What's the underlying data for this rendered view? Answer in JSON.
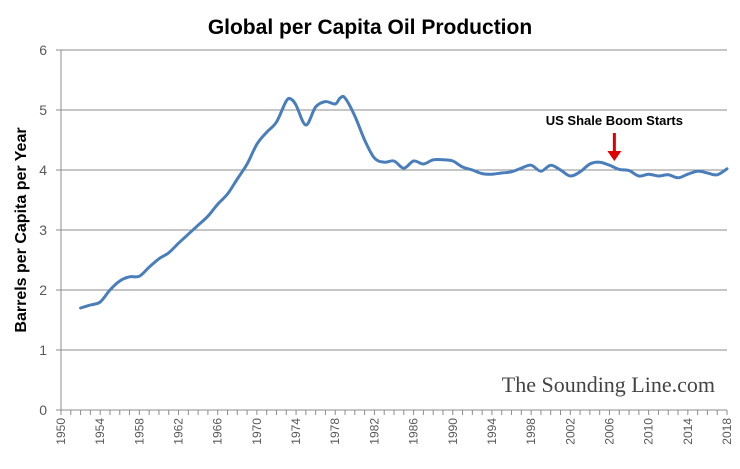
{
  "chart_data": {
    "type": "line",
    "title": "Global per Capita Oil Production",
    "xlabel": "",
    "ylabel": "Barrels per Capita per Year",
    "xlim": [
      1950,
      2018
    ],
    "ylim": [
      0,
      6
    ],
    "y_ticks": [
      "0",
      "1",
      "2",
      "3",
      "4",
      "5",
      "6"
    ],
    "x_ticks": [
      "1950",
      "1954",
      "1958",
      "1962",
      "1966",
      "1970",
      "1974",
      "1978",
      "1982",
      "1986",
      "1990",
      "1994",
      "1998",
      "2002",
      "2006",
      "2010",
      "2014",
      "2018"
    ],
    "grid": "horizontal",
    "line_color": "#4a7ebb",
    "series": [
      {
        "x": [
          1952,
          1953,
          1954,
          1955,
          1956,
          1957,
          1958,
          1959,
          1960,
          1961,
          1962,
          1963,
          1964,
          1965,
          1966,
          1967,
          1968,
          1969,
          1970,
          1971,
          1972,
          1973,
          1973.5,
          1974,
          1975,
          1976,
          1977,
          1978,
          1978.5,
          1979,
          1980,
          1981,
          1982,
          1983,
          1984,
          1985,
          1986,
          1987,
          1988,
          1989,
          1990,
          1991,
          1992,
          1993,
          1994,
          1995,
          1996,
          1997,
          1998,
          1999,
          2000,
          2001,
          2002,
          2003,
          2004,
          2005,
          2006,
          2007,
          2008,
          2009,
          2010,
          2011,
          2012,
          2013,
          2014,
          2015,
          2016,
          2017,
          2018
        ],
        "y": [
          1.7,
          1.75,
          1.8,
          2.0,
          2.15,
          2.22,
          2.23,
          2.38,
          2.52,
          2.62,
          2.78,
          2.93,
          3.08,
          3.23,
          3.43,
          3.6,
          3.85,
          4.1,
          4.43,
          4.63,
          4.8,
          5.15,
          5.18,
          5.08,
          4.75,
          5.05,
          5.14,
          5.1,
          5.2,
          5.2,
          4.9,
          4.5,
          4.2,
          4.13,
          4.15,
          4.03,
          4.15,
          4.1,
          4.17,
          4.17,
          4.15,
          4.05,
          4.0,
          3.94,
          3.93,
          3.95,
          3.97,
          4.03,
          4.08,
          3.98,
          4.08,
          4.0,
          3.9,
          3.97,
          4.1,
          4.13,
          4.08,
          4.01,
          3.99,
          3.9,
          3.93,
          3.9,
          3.92,
          3.87,
          3.93,
          3.98,
          3.95,
          3.92,
          4.02
        ]
      }
    ],
    "annotations": [
      {
        "text": "US Shale Boom Starts",
        "x": 2006.5,
        "y": 4.1,
        "arrow_color": "#e00000"
      }
    ],
    "watermark": "The Sounding Line.com"
  }
}
